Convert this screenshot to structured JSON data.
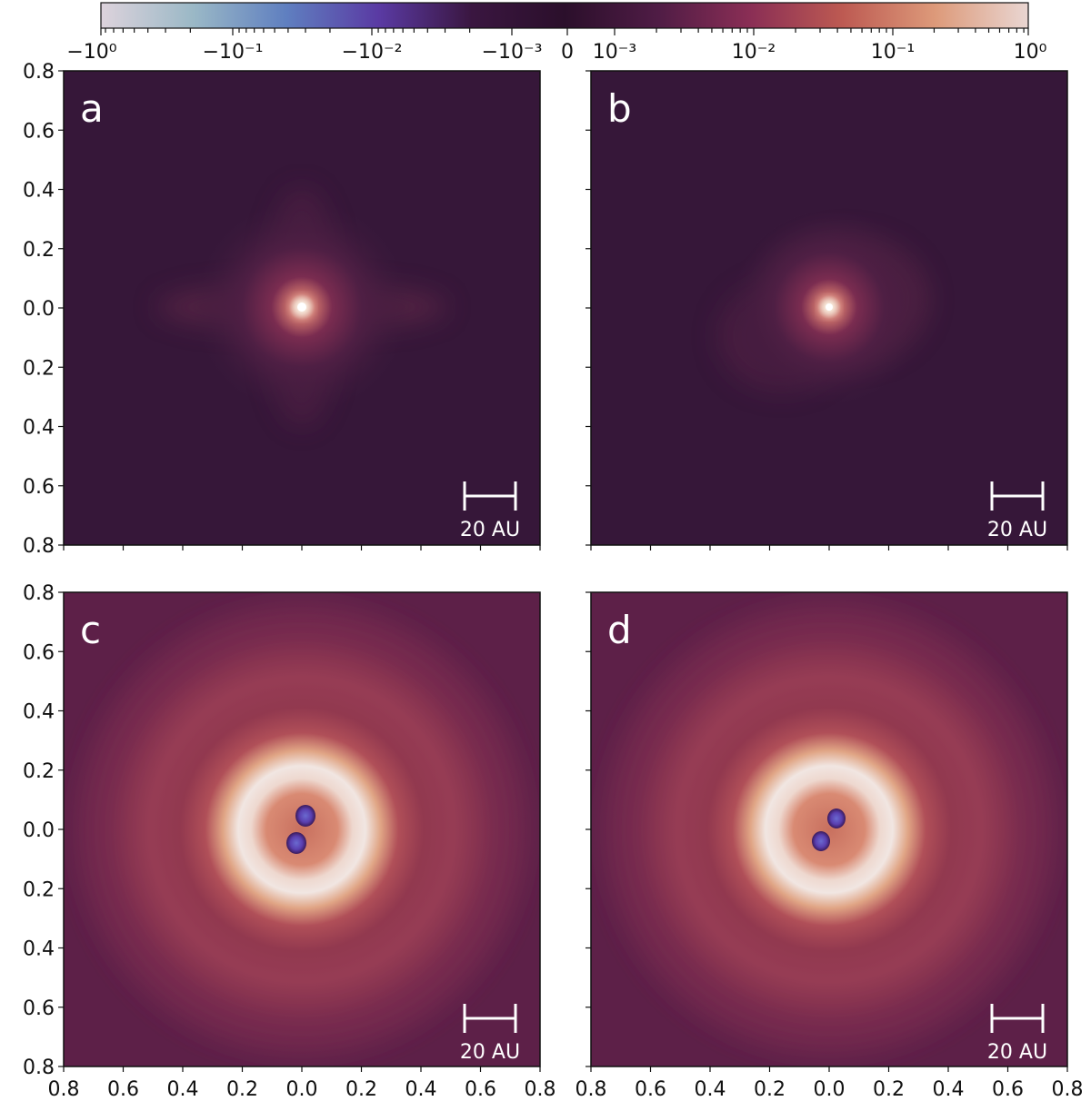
{
  "chart_data": {
    "type": "heatmap",
    "colormap": "twilight_shifted (symlog)",
    "colorbar": {
      "scale": "symlog",
      "range": [
        -1,
        1
      ],
      "tick_labels": [
        "−10⁰",
        "−10⁻¹",
        "−10⁻²",
        "−10⁻³",
        "0",
        "10⁻³",
        "10⁻²",
        "10⁻¹",
        "10⁰"
      ],
      "colors": [
        "#ddd3dc",
        "#9ab8c6",
        "#5f7fc0",
        "#5a3aa3",
        "#3a1640",
        "#2b0f2b",
        "#4f1c45",
        "#8a2e55",
        "#bd5a52",
        "#dd9a7a",
        "#e9d6d2"
      ]
    },
    "y_tick_labels": [
      "0.8",
      "0.6",
      "0.4",
      "0.2",
      "0.0",
      "0.2",
      "0.4",
      "0.6",
      "0.8"
    ],
    "x_tick_labels": [
      "0.8",
      "0.6",
      "0.4",
      "0.2",
      "0.0",
      "0.2",
      "0.4",
      "0.6",
      "0.8"
    ],
    "axis_range": [
      -0.8,
      0.8
    ],
    "scale_bar_label": "20 AU",
    "panels": [
      {
        "label": "a",
        "structure": "central bright peak with faint streaks",
        "background": "#3b1a3c"
      },
      {
        "label": "b",
        "structure": "central bright peak, offset glow",
        "background": "#3b1a3c"
      },
      {
        "label": "c",
        "structure": "bright ring radius ~0.2 with negative dipole lobes at center",
        "background": "#8a3a55"
      },
      {
        "label": "d",
        "structure": "bright ring radius ~0.2 with negative dipole lobes at center, rotated",
        "background": "#8a3a55"
      }
    ]
  }
}
